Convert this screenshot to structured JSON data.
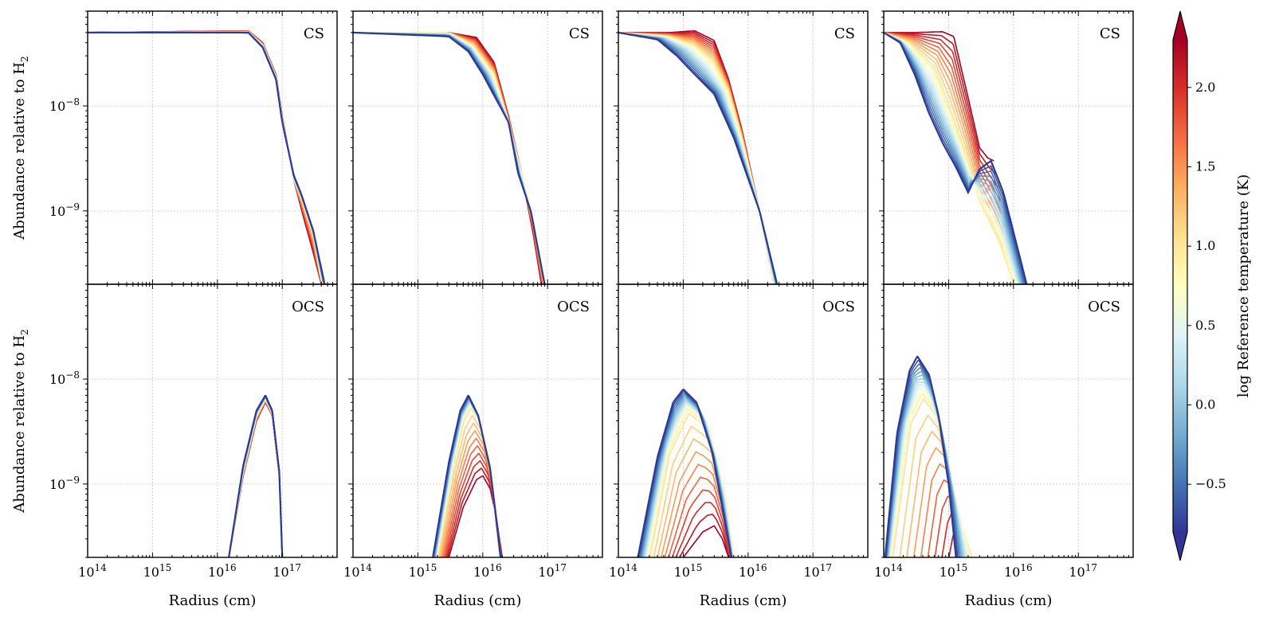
{
  "chart_data": [
    {
      "type": "line",
      "row": "top",
      "column": 1,
      "species": "CS",
      "x_scale": "log",
      "y_scale": "log",
      "xlim": [
        100000000000000.0,
        7e+17
      ],
      "ylim": [
        2e-10,
        8e-08
      ],
      "legend_position": "top-right",
      "grid": true,
      "curves": [
        {
          "logT": 2.3,
          "x": [
            100000000000000.0,
            3e+16,
            5e+16,
            8e+16,
            1e+17,
            1.5e+17,
            2e+17,
            3e+17,
            4e+17
          ],
          "y": [
            5e-08,
            5.2e-08,
            4e-08,
            2e-08,
            8e-09,
            2e-09,
            1e-09,
            4e-10,
            2e-10
          ]
        },
        {
          "logT": 1.0,
          "x": [
            100000000000000.0,
            3e+16,
            5e+16,
            8e+16,
            1e+17,
            1.5e+17,
            2e+17,
            3e+17,
            4e+17
          ],
          "y": [
            5e-08,
            5.1e-08,
            3.8e-08,
            1.9e-08,
            7.5e-09,
            2e-09,
            1.3e-09,
            6e-10,
            2.2e-10
          ]
        },
        {
          "logT": -0.8,
          "x": [
            100000000000000.0,
            3e+16,
            5e+16,
            8e+16,
            1e+17,
            1.5e+17,
            2e+17,
            3e+17,
            4.5e+17
          ],
          "y": [
            5e-08,
            5e-08,
            3.6e-08,
            1.8e-08,
            7e-09,
            2.2e-09,
            1.4e-09,
            6.5e-10,
            2e-10
          ]
        }
      ]
    },
    {
      "type": "line",
      "row": "top",
      "column": 2,
      "species": "CS",
      "x_scale": "log",
      "y_scale": "log",
      "xlim": [
        100000000000000.0,
        7e+17
      ],
      "ylim": [
        2e-10,
        8e-08
      ],
      "legend_position": "top-right",
      "grid": true,
      "curves": [
        {
          "logT": 2.3,
          "x": [
            100000000000000.0,
            3000000000000000.0,
            8000000000000000.0,
            1.5e+16,
            2.5e+16,
            4e+16,
            6e+16,
            8e+16
          ],
          "y": [
            5e-08,
            5e-08,
            4.5e-08,
            2.6e-08,
            8e-09,
            2.2e-09,
            6e-10,
            2e-10
          ]
        },
        {
          "logT": 1.0,
          "x": [
            100000000000000.0,
            3000000000000000.0,
            7000000000000000.0,
            1.5e+16,
            2.5e+16,
            4e+16,
            6e+16,
            9e+16
          ],
          "y": [
            5e-08,
            5e-08,
            3.8e-08,
            2e-08,
            7e-09,
            2.2e-09,
            8e-10,
            2e-10
          ]
        },
        {
          "logT": -0.8,
          "x": [
            100000000000000.0,
            3000000000000000.0,
            6000000000000000.0,
            1e+16,
            2.5e+16,
            3.5e+16,
            5.5e+16,
            9e+16
          ],
          "y": [
            5e-08,
            4.6e-08,
            3.3e-08,
            2e-08,
            7e-09,
            2.3e-09,
            1e-09,
            2e-10
          ]
        }
      ]
    },
    {
      "type": "line",
      "row": "top",
      "column": 3,
      "species": "CS",
      "x_scale": "log",
      "y_scale": "log",
      "xlim": [
        100000000000000.0,
        7e+17
      ],
      "ylim": [
        2e-10,
        8e-08
      ],
      "legend_position": "top-right",
      "grid": true,
      "curves": [
        {
          "logT": 2.3,
          "x": [
            100000000000000.0,
            600000000000000.0,
            1500000000000000.0,
            3000000000000000.0,
            5000000000000000.0,
            8000000000000000.0,
            1.5e+16,
            2.5e+16
          ],
          "y": [
            5e-08,
            5e-08,
            5.2e-08,
            4.2e-08,
            1.8e-08,
            6e-09,
            1e-09,
            2e-10
          ]
        },
        {
          "logT": 1.0,
          "x": [
            100000000000000.0,
            600000000000000.0,
            1500000000000000.0,
            3000000000000000.0,
            5000000000000000.0,
            8000000000000000.0,
            1.5e+16,
            2.5e+16
          ],
          "y": [
            5e-08,
            4.6e-08,
            3.8e-08,
            2.6e-08,
            1.4e-08,
            5e-09,
            1e-09,
            2e-10
          ]
        },
        {
          "logT": -0.8,
          "x": [
            100000000000000.0,
            400000000000000.0,
            800000000000000.0,
            1500000000000000.0,
            3000000000000000.0,
            6000000000000000.0,
            1.5e+16,
            2.8e+16
          ],
          "y": [
            5e-08,
            4.3e-08,
            3e-08,
            2e-08,
            1.3e-08,
            5e-09,
            1e-09,
            2e-10
          ]
        }
      ]
    },
    {
      "type": "line",
      "row": "top",
      "column": 4,
      "species": "CS",
      "x_scale": "log",
      "y_scale": "log",
      "xlim": [
        100000000000000.0,
        7e+17
      ],
      "ylim": [
        2e-10,
        8e-08
      ],
      "legend_position": "top-right",
      "grid": true,
      "curves": [
        {
          "logT": 2.3,
          "x": [
            100000000000000.0,
            300000000000000.0,
            800000000000000.0,
            1200000000000000.0,
            2000000000000000.0,
            3000000000000000.0,
            4000000000000000.0,
            5000000000000000.0
          ],
          "y": [
            5e-08,
            5e-08,
            5.1e-08,
            4.6e-08,
            1.2e-08,
            4e-09,
            3.2e-09,
            3e-09
          ]
        },
        {
          "logT": 1.0,
          "x": [
            100000000000000.0,
            250000000000000.0,
            600000000000000.0,
            1000000000000000.0,
            1800000000000000.0,
            3000000000000000.0,
            6000000000000000.0,
            1e+16
          ],
          "y": [
            5e-08,
            4e-08,
            2.3e-08,
            1e-08,
            3.5e-09,
            1.2e-09,
            5e-10,
            2e-10
          ]
        },
        {
          "logT": -0.8,
          "x": [
            100000000000000.0,
            180000000000000.0,
            300000000000000.0,
            500000000000000.0,
            800000000000000.0,
            1300000000000000.0,
            2000000000000000.0,
            3000000000000000.0,
            4500000000000000.0,
            7000000000000000.0,
            1.6e+16
          ],
          "y": [
            5e-08,
            4e-08,
            2e-08,
            8.5e-09,
            4.5e-09,
            2.6e-09,
            1.5e-09,
            2.5e-09,
            3e-09,
            1.5e-09,
            2e-10
          ]
        }
      ]
    },
    {
      "type": "line",
      "row": "bottom",
      "column": 1,
      "species": "OCS",
      "x_scale": "log",
      "y_scale": "log",
      "xlim": [
        100000000000000.0,
        7e+17
      ],
      "ylim": [
        2e-10,
        8e-08
      ],
      "legend_position": "top-right",
      "grid": true,
      "curves": [
        {
          "logT": 2.3,
          "x": [
            1.5e+16,
            2.5e+16,
            4e+16,
            5.5e+16,
            7e+16,
            9e+16,
            1e+17
          ],
          "y": [
            2e-10,
            1.2e-09,
            4e-09,
            6e-09,
            4.5e-09,
            1.2e-09,
            2e-10
          ]
        },
        {
          "logT": -0.8,
          "x": [
            1.5e+16,
            2.5e+16,
            4e+16,
            5.5e+16,
            7e+16,
            9e+16,
            1e+17
          ],
          "y": [
            2e-10,
            1.5e-09,
            5e-09,
            7e-09,
            5e-09,
            1.3e-09,
            2e-10
          ]
        }
      ]
    },
    {
      "type": "line",
      "row": "bottom",
      "column": 2,
      "species": "OCS",
      "x_scale": "log",
      "y_scale": "log",
      "xlim": [
        100000000000000.0,
        7e+17
      ],
      "ylim": [
        2e-10,
        8e-08
      ],
      "legend_position": "top-right",
      "grid": true,
      "curves": [
        {
          "logT": 2.3,
          "x": [
            3000000000000000.0,
            5000000000000000.0,
            8000000000000000.0,
            1e+16,
            1.3e+16,
            1.6e+16,
            2e+16
          ],
          "y": [
            2e-10,
            6e-10,
            1.1e-09,
            1.2e-09,
            9e-10,
            5e-10,
            2e-10
          ]
        },
        {
          "logT": 1.0,
          "x": [
            2000000000000000.0,
            3500000000000000.0,
            5000000000000000.0,
            6500000000000000.0,
            9000000000000000.0,
            1.3e+16,
            1.8e+16
          ],
          "y": [
            2e-10,
            1.5e-09,
            4e-09,
            5.5e-09,
            4e-09,
            1.5e-09,
            2e-10
          ]
        },
        {
          "logT": -0.8,
          "x": [
            1700000000000000.0,
            3000000000000000.0,
            4500000000000000.0,
            6000000000000000.0,
            8500000000000000.0,
            1.3e+16,
            1.9e+16
          ],
          "y": [
            2e-10,
            1.6e-09,
            5e-09,
            7e-09,
            4.5e-09,
            1.4e-09,
            2e-10
          ]
        }
      ]
    },
    {
      "type": "line",
      "row": "bottom",
      "column": 3,
      "species": "OCS",
      "x_scale": "log",
      "y_scale": "log",
      "xlim": [
        100000000000000.0,
        7e+17
      ],
      "ylim": [
        2e-10,
        8e-08
      ],
      "legend_position": "top-right",
      "grid": true,
      "curves": [
        {
          "logT": 2.3,
          "x": [
            1000000000000000.0,
            2000000000000000.0,
            3000000000000000.0,
            4000000000000000.0,
            5000000000000000.0
          ],
          "y": [
            2e-10,
            3.5e-10,
            4e-10,
            3e-10,
            2e-10
          ]
        },
        {
          "logT": 1.0,
          "x": [
            300000000000000.0,
            600000000000000.0,
            1200000000000000.0,
            2500000000000000.0,
            4500000000000000.0,
            6000000000000000.0
          ],
          "y": [
            2e-10,
            2e-09,
            5e-09,
            3.5e-09,
            8e-10,
            2e-10
          ]
        },
        {
          "logT": -0.8,
          "x": [
            200000000000000.0,
            400000000000000.0,
            700000000000000.0,
            1000000000000000.0,
            1600000000000000.0,
            2800000000000000.0,
            4500000000000000.0,
            5500000000000000.0
          ],
          "y": [
            2e-10,
            1.8e-09,
            6e-09,
            8e-09,
            6e-09,
            2e-09,
            4e-10,
            2e-10
          ]
        }
      ]
    },
    {
      "type": "line",
      "row": "bottom",
      "column": 4,
      "species": "OCS",
      "x_scale": "log",
      "y_scale": "log",
      "xlim": [
        100000000000000.0,
        7e+17
      ],
      "ylim": [
        2e-10,
        8e-08
      ],
      "legend_position": "top-right",
      "grid": true,
      "curves": [
        {
          "logT": 2.3,
          "x": [
            1300000000000000.0,
            1600000000000000.0,
            2000000000000000.0
          ],
          "y": [
            2e-10,
            3e-10,
            2e-10
          ]
        },
        {
          "logT": 1.0,
          "x": [
            130000000000000.0,
            250000000000000.0,
            400000000000000.0,
            600000000000000.0,
            1000000000000000.0,
            1600000000000000.0,
            2300000000000000.0
          ],
          "y": [
            2e-10,
            4e-09,
            7e-09,
            5e-09,
            1.5e-09,
            4e-10,
            2e-10
          ]
        },
        {
          "logT": -0.8,
          "x": [
            105000000000000.0,
            160000000000000.0,
            250000000000000.0,
            330000000000000.0,
            500000000000000.0,
            700000000000000.0,
            1000000000000000.0,
            1300000000000000.0
          ],
          "y": [
            2e-10,
            3e-09,
            1.2e-08,
            1.65e-08,
            1.1e-08,
            4.5e-09,
            1e-09,
            2e-10
          ]
        }
      ]
    }
  ],
  "labels": {
    "ylabel_main": "Abundance relative to H",
    "ylabel_sub": "2",
    "xlabel": "Radius (cm)",
    "species_top": "CS",
    "species_bottom": "OCS",
    "colorbar_label": "log Reference temperature (K)"
  },
  "x_ticks": [
    {
      "value": 100000000000000.0,
      "base": "10",
      "exp": "14"
    },
    {
      "value": 1000000000000000.0,
      "base": "10",
      "exp": "15"
    },
    {
      "value": 1e+16,
      "base": "10",
      "exp": "16"
    },
    {
      "value": 1e+17,
      "base": "10",
      "exp": "17"
    }
  ],
  "y_ticks": [
    {
      "value": 1e-08,
      "base": "10",
      "exp": "−8"
    },
    {
      "value": 1e-09,
      "base": "10",
      "exp": "−9"
    }
  ],
  "colorbar": {
    "vmin": -0.8,
    "vmax": 2.3,
    "cmap": "RdYlBu_r",
    "extend": "both",
    "ticks": [
      {
        "value": -0.5,
        "label": "−0.5"
      },
      {
        "value": 0.0,
        "label": "0.0"
      },
      {
        "value": 0.5,
        "label": "0.5"
      },
      {
        "value": 1.0,
        "label": "1.0"
      },
      {
        "value": 1.5,
        "label": "1.5"
      },
      {
        "value": 2.0,
        "label": "2.0"
      }
    ]
  }
}
